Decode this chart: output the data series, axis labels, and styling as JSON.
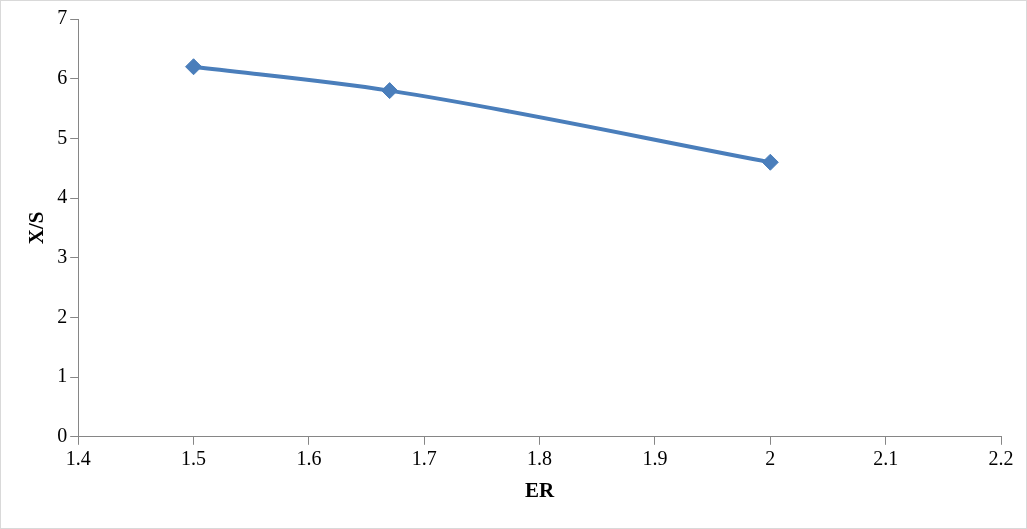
{
  "chart_data": {
    "type": "line",
    "xlabel": "ER",
    "ylabel": "X/S",
    "x": [
      1.5,
      1.67,
      2
    ],
    "series": [
      {
        "color": "#4a7ebb",
        "values": [
          6.2,
          5.8,
          4.6
        ]
      }
    ],
    "xlim": [
      1.4,
      2.2
    ],
    "xticks": [
      1.4,
      1.5,
      1.6,
      1.7,
      1.8,
      1.9,
      2,
      2.1,
      2.2
    ],
    "ylim": [
      0,
      7
    ],
    "yticks": [
      0,
      1,
      2,
      3,
      4,
      5,
      6,
      7
    ],
    "grid": false,
    "legend": false,
    "marker": "diamond",
    "line_style": "solid"
  }
}
